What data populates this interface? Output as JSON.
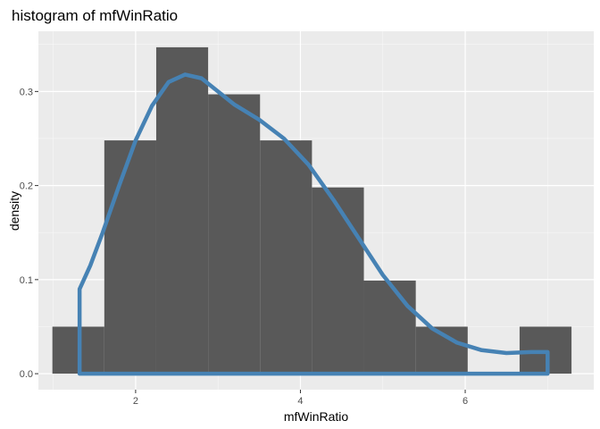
{
  "chart_data": {
    "type": "histogram",
    "title": "histogram of mfWinRatio",
    "xlabel": "mfWinRatio",
    "ylabel": "density",
    "xlim": [
      0.82,
      7.56
    ],
    "ylim": [
      -0.017,
      0.364
    ],
    "x_ticks": [
      2,
      4,
      6
    ],
    "y_ticks": [
      0.0,
      0.1,
      0.2,
      0.3
    ],
    "y_tick_labels": [
      "0.0",
      "0.1",
      "0.2",
      "0.3"
    ],
    "x_minor": [
      1,
      3,
      5,
      7
    ],
    "y_minor": [
      0.05,
      0.15,
      0.25,
      0.35
    ],
    "grid": true,
    "bins": [
      {
        "x0": 0.99,
        "x1": 1.62,
        "density": 0.05
      },
      {
        "x0": 1.62,
        "x1": 2.25,
        "density": 0.248
      },
      {
        "x0": 2.25,
        "x1": 2.88,
        "density": 0.347
      },
      {
        "x0": 2.88,
        "x1": 3.51,
        "density": 0.297
      },
      {
        "x0": 3.51,
        "x1": 4.14,
        "density": 0.248
      },
      {
        "x0": 4.14,
        "x1": 4.77,
        "density": 0.198
      },
      {
        "x0": 4.77,
        "x1": 5.4,
        "density": 0.099
      },
      {
        "x0": 5.4,
        "x1": 6.03,
        "density": 0.05
      },
      {
        "x0": 6.03,
        "x1": 6.66,
        "density": 0.0
      },
      {
        "x0": 6.66,
        "x1": 7.29,
        "density": 0.05
      }
    ],
    "density_curve": {
      "x": [
        1.32,
        1.45,
        1.6,
        1.8,
        2.0,
        2.2,
        2.4,
        2.6,
        2.8,
        3.0,
        3.2,
        3.5,
        3.8,
        4.1,
        4.4,
        4.7,
        5.0,
        5.3,
        5.6,
        5.9,
        6.2,
        6.5,
        6.8,
        7.0
      ],
      "y": [
        0.09,
        0.115,
        0.15,
        0.2,
        0.248,
        0.285,
        0.31,
        0.318,
        0.314,
        0.3,
        0.286,
        0.27,
        0.25,
        0.222,
        0.185,
        0.145,
        0.105,
        0.072,
        0.048,
        0.033,
        0.025,
        0.022,
        0.023,
        0.023
      ]
    },
    "colors": {
      "panel": "#ebebeb",
      "grid_major": "#ffffff",
      "bar_fill": "#595959",
      "curve": "#4682b4"
    }
  }
}
